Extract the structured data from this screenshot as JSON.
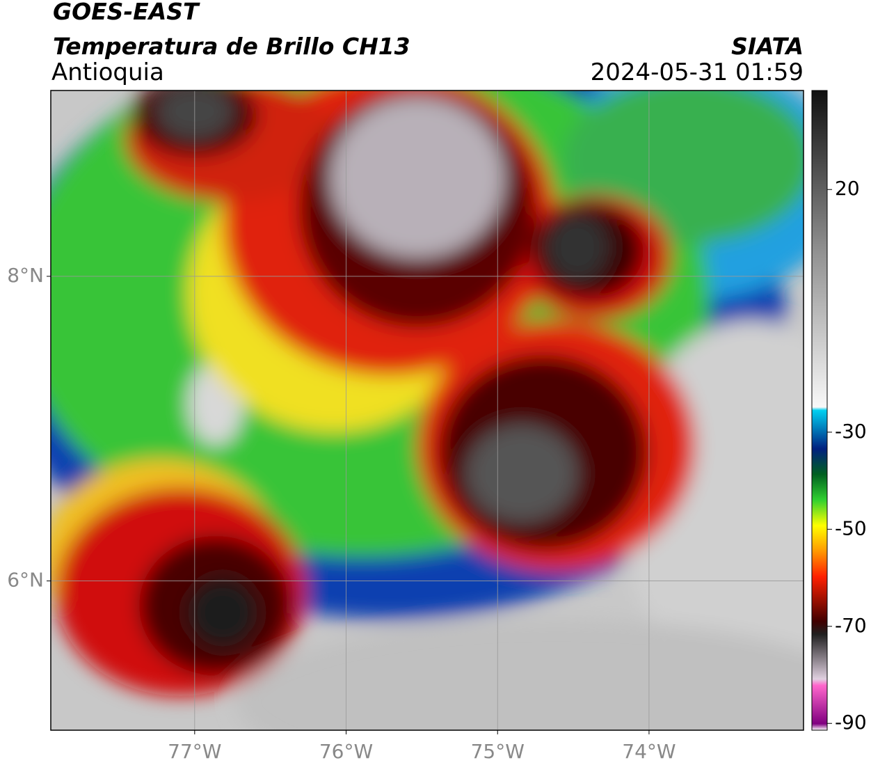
{
  "header": {
    "title": "GOES-EAST",
    "subtitle": "Temperatura de Brillo CH13",
    "region": "Antioquia",
    "source": "SIATA",
    "datetime": "2024-05-31 01:59"
  },
  "map": {
    "lon_range": [
      -77.95,
      -72.98
    ],
    "lat_range": [
      5.02,
      9.22
    ],
    "lon_ticks": [
      {
        "value": -77,
        "label": "77°W"
      },
      {
        "value": -76,
        "label": "76°W"
      },
      {
        "value": -75,
        "label": "75°W"
      },
      {
        "value": -74,
        "label": "74°W"
      }
    ],
    "lat_ticks": [
      {
        "value": 8,
        "label": "8°N"
      },
      {
        "value": 6,
        "label": "6°N"
      }
    ],
    "grid": true
  },
  "colorbar": {
    "range": [
      -91.4,
      40.4
    ],
    "ticks": [
      20,
      -30,
      -50,
      -70,
      -90
    ]
  }
}
